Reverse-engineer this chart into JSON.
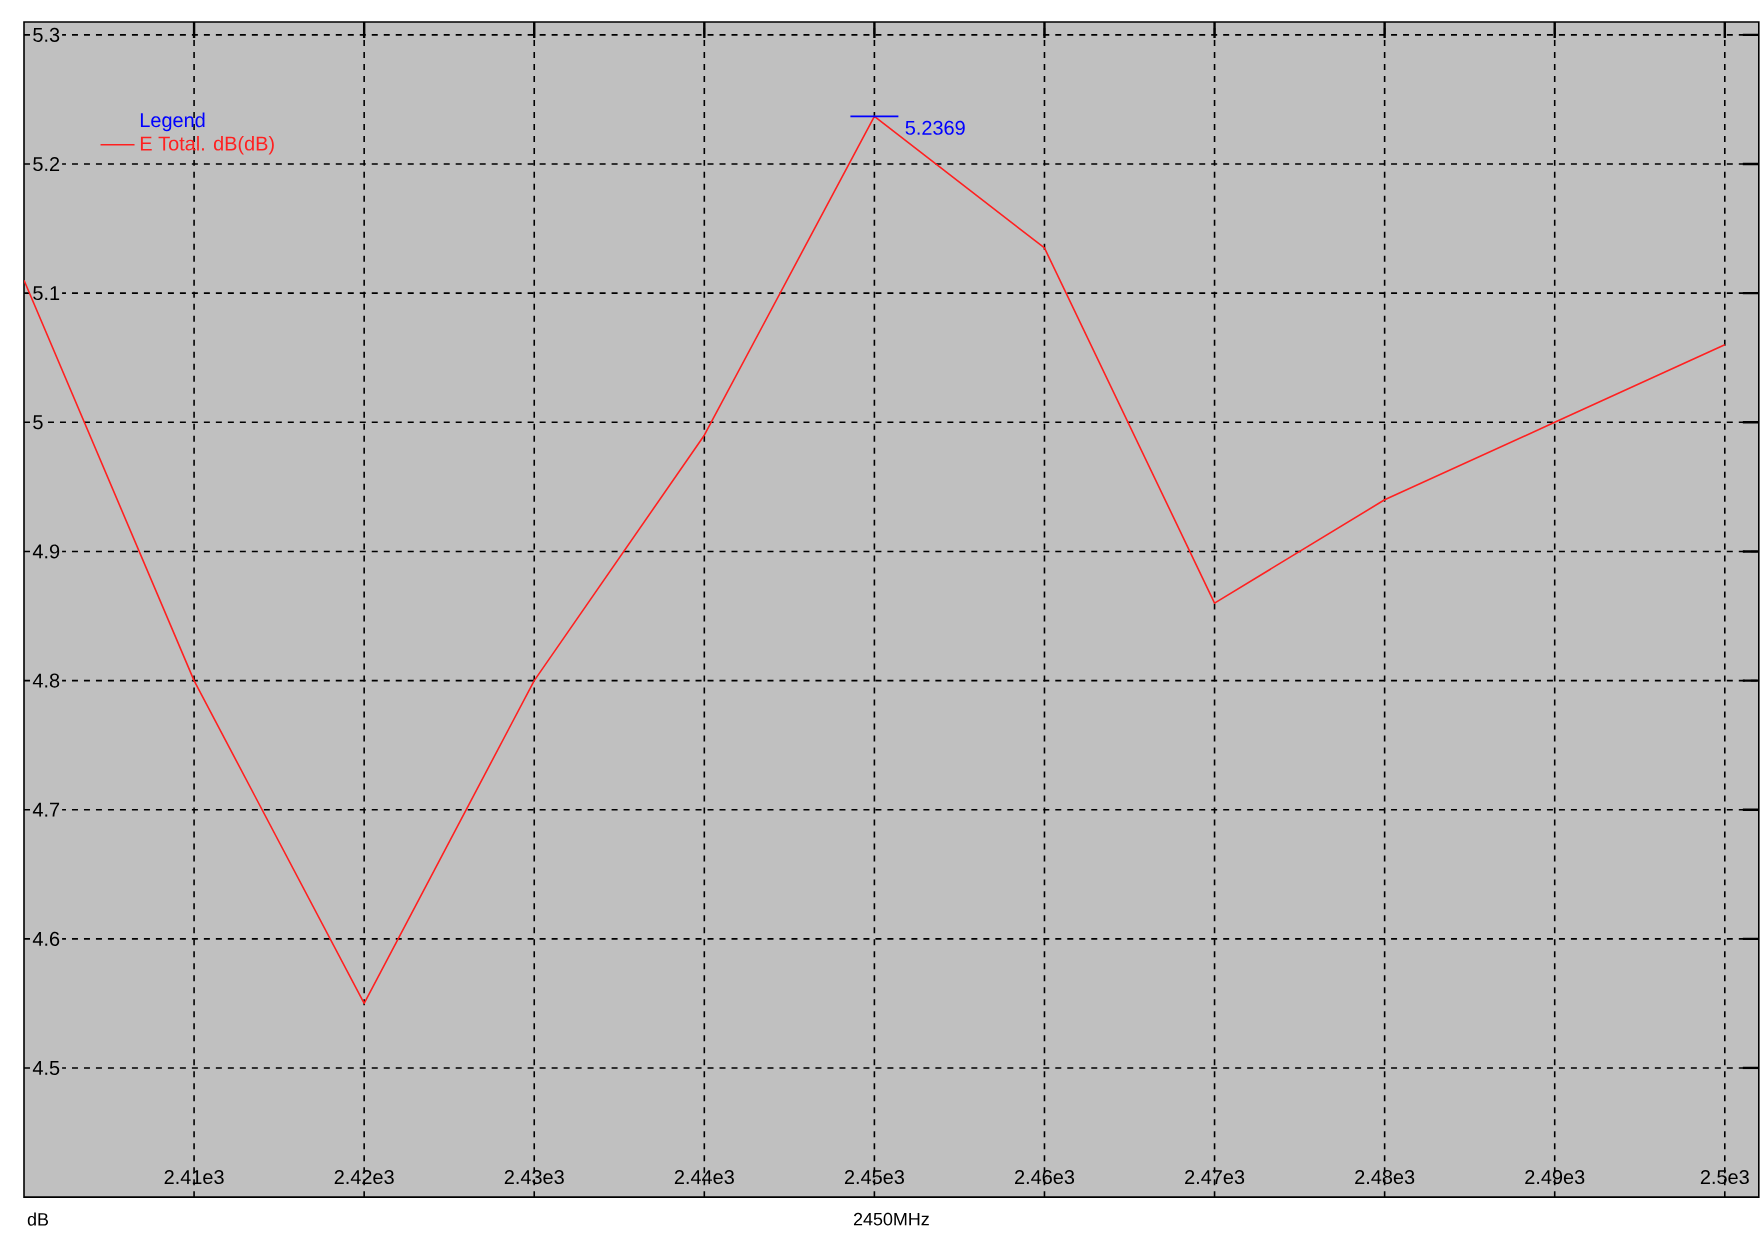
{
  "chart_data": {
    "type": "line",
    "x": [
      2400,
      2410,
      2420,
      2430,
      2440,
      2450,
      2460,
      2470,
      2480,
      2490,
      2500
    ],
    "series": [
      {
        "name": "E Total. dB(dB)",
        "color": "#ff2020",
        "values": [
          5.11,
          4.8,
          4.55,
          4.8,
          4.99,
          5.2369,
          5.135,
          4.86,
          4.94,
          5.0,
          5.06
        ]
      }
    ],
    "legend_title": "Legend",
    "xlim": [
      2400,
      2502
    ],
    "ylim": [
      4.4,
      5.31
    ],
    "xticks": [
      {
        "value": 2410,
        "label": "2.41e3"
      },
      {
        "value": 2420,
        "label": "2.42e3"
      },
      {
        "value": 2430,
        "label": "2.43e3"
      },
      {
        "value": 2440,
        "label": "2.44e3"
      },
      {
        "value": 2450,
        "label": "2.45e3"
      },
      {
        "value": 2460,
        "label": "2.46e3"
      },
      {
        "value": 2470,
        "label": "2.47e3"
      },
      {
        "value": 2480,
        "label": "2.48e3"
      },
      {
        "value": 2490,
        "label": "2.49e3"
      },
      {
        "value": 2500,
        "label": "2.5e3"
      }
    ],
    "yticks": [
      4.5,
      4.6,
      4.7,
      4.8,
      4.9,
      5,
      5.1,
      5.2,
      5.3
    ],
    "grid": true,
    "legend": "top left",
    "annotations": [
      {
        "text": "5.2369",
        "x": 2450,
        "y": 5.2369
      },
      "dB",
      "2450MHz"
    ]
  }
}
